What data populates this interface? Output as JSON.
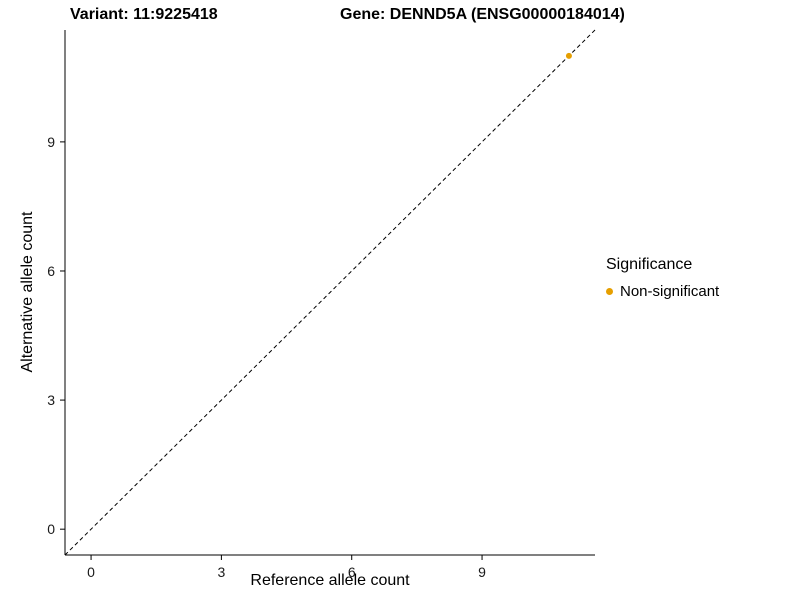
{
  "chart_data": {
    "type": "scatter",
    "title_left": "Variant: 11:9225418",
    "title_right": "Gene: DENND5A (ENSG00000184014)",
    "xlabel": "Reference allele count",
    "ylabel": "Alternative allele count",
    "xlim": [
      -0.6,
      11.6
    ],
    "ylim": [
      -0.6,
      11.6
    ],
    "xticks": [
      0,
      3,
      6,
      9
    ],
    "yticks": [
      0,
      3,
      6,
      9
    ],
    "grid": false,
    "background": "#ffffff",
    "axis_color": "#000000",
    "identity_line": {
      "style": "dashed",
      "color": "#000000",
      "from": [
        -0.6,
        -0.6
      ],
      "to": [
        11.6,
        11.6
      ]
    },
    "series": [
      {
        "name": "Non-significant",
        "color": "#E69F00",
        "point_radius": 3,
        "points": [
          [
            11,
            11
          ]
        ]
      }
    ],
    "legend": {
      "title": "Significance",
      "position": "right",
      "items": [
        {
          "label": "Non-significant",
          "color": "#E69F00"
        }
      ]
    }
  }
}
